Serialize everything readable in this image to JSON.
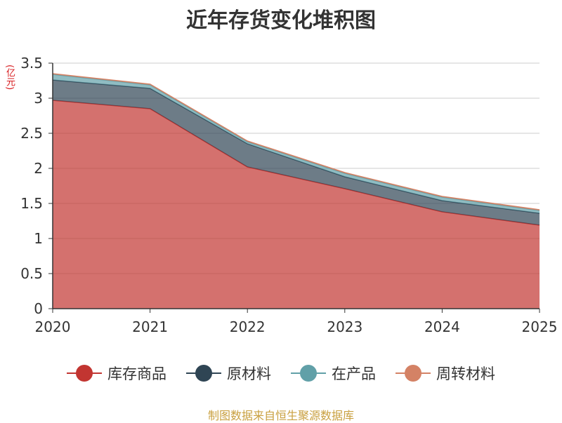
{
  "title": "近年存货变化堆积图",
  "unit": "(亿元)",
  "source": "制图数据来自恒生聚源数据库",
  "chart_data": {
    "type": "area",
    "stacked": true,
    "title": "近年存货变化堆积图",
    "ylabel": "(亿元)",
    "x": [
      "2020",
      "2021",
      "2022",
      "2023",
      "2024",
      "2025"
    ],
    "ylim": [
      0,
      3.5
    ],
    "yticks": [
      "0",
      "0.5",
      "1",
      "1.5",
      "2",
      "2.5",
      "3",
      "3.5"
    ],
    "grid": true,
    "legend_position": "bottom",
    "series": [
      {
        "name": "库存商品",
        "color": "#c23531",
        "values": [
          2.97,
          2.85,
          2.02,
          1.71,
          1.38,
          1.19
        ]
      },
      {
        "name": "原材料",
        "color": "#2f4554",
        "values": [
          0.29,
          0.29,
          0.33,
          0.17,
          0.16,
          0.17
        ]
      },
      {
        "name": "在产品",
        "color": "#61a0a8",
        "values": [
          0.08,
          0.05,
          0.03,
          0.05,
          0.05,
          0.04
        ]
      },
      {
        "name": "周转材料",
        "color": "#d48265",
        "values": [
          0.01,
          0.01,
          0.01,
          0.01,
          0.01,
          0.01
        ]
      }
    ]
  }
}
